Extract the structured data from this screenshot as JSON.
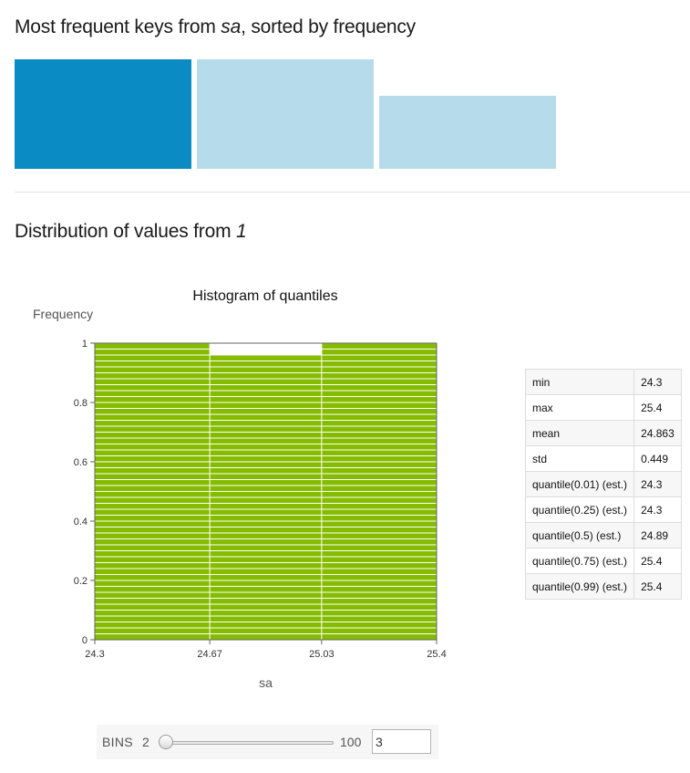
{
  "frequency_section": {
    "title_prefix": "Most frequent keys from ",
    "title_key": "sa",
    "title_suffix": ", sorted by frequency"
  },
  "distribution_section": {
    "title_prefix": "Distribution of values from ",
    "title_key": "1"
  },
  "colors": {
    "highlight_bar": "#0b8bc4",
    "muted_bar": "#b6dcec",
    "histogram_bar": "#86bc00",
    "gridline": "#ffffff"
  },
  "chart_data": [
    {
      "type": "bar",
      "values": [
        3,
        3,
        2
      ],
      "highlighted_index": 0
    },
    {
      "type": "bar",
      "title": "Histogram of quantiles",
      "xlabel": "sa",
      "ylabel": "Frequency",
      "bin_edges": [
        24.3,
        24.67,
        25.03,
        25.4
      ],
      "x_tick_labels": [
        "24.3",
        "24.67",
        "25.03",
        "25.4"
      ],
      "values": [
        1,
        0.96,
        1
      ],
      "xlim": [
        24.3,
        25.4
      ],
      "ylim": [
        0,
        1
      ],
      "y_ticks": [
        0,
        0.2,
        0.4,
        0.6,
        0.8,
        1
      ],
      "y_tick_labels": [
        "0",
        "0.2",
        "0.4",
        "0.6",
        "0.8",
        "1"
      ],
      "grid": true
    }
  ],
  "stats": [
    {
      "label": "min",
      "value": "24.3"
    },
    {
      "label": "max",
      "value": "25.4"
    },
    {
      "label": "mean",
      "value": "24.863"
    },
    {
      "label": "std",
      "value": "0.449"
    },
    {
      "label": "quantile(0.01) (est.)",
      "value": "24.3"
    },
    {
      "label": "quantile(0.25) (est.)",
      "value": "24.3"
    },
    {
      "label": "quantile(0.5) (est.)",
      "value": "24.89"
    },
    {
      "label": "quantile(0.75) (est.)",
      "value": "25.4"
    },
    {
      "label": "quantile(0.99) (est.)",
      "value": "25.4"
    }
  ],
  "bins_control": {
    "label": "BINS",
    "min_label": "2",
    "max_label": "100",
    "min": 2,
    "max": 100,
    "value": "3"
  }
}
